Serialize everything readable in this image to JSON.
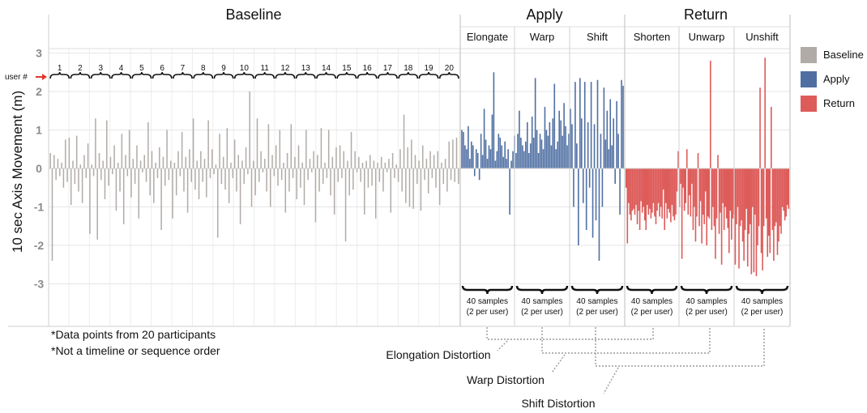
{
  "chart_data": {
    "type": "bar",
    "ylabel": "10 sec Axis Movement (m)",
    "ylim": [
      -3.5,
      3
    ],
    "yticks": [
      3,
      2,
      1,
      0,
      -1,
      -2,
      -3
    ],
    "groups": [
      "Baseline",
      "Apply",
      "Return"
    ],
    "subconditions": [
      "Elongate",
      "Warp",
      "Shift",
      "Shorten",
      "Unwarp",
      "Unshift"
    ],
    "user_marker": "user #",
    "users": [
      "1",
      "2",
      "3",
      "4",
      "5",
      "6",
      "7",
      "8",
      "9",
      "10",
      "11",
      "12",
      "13",
      "14",
      "15",
      "16",
      "17",
      "18",
      "19",
      "20"
    ],
    "sample_label_line1": "40 samples",
    "sample_label_line2": "(2 per user)",
    "legend": [
      {
        "name": "Baseline",
        "color": "#b1aba7"
      },
      {
        "name": "Apply",
        "color": "#4f6fa3"
      },
      {
        "name": "Return",
        "color": "#dd5c5a"
      }
    ],
    "notes": [
      "*Data points from 20 participants",
      "*Not a timeline or sequence order"
    ],
    "distortions": [
      "Elongation Distortion",
      "Warp Distortion",
      "Shift Distortion"
    ],
    "series": [
      {
        "name": "Baseline",
        "values": [
          0.4,
          -2.4,
          0.35,
          -0.3,
          0.25,
          -0.2,
          0.15,
          -0.5,
          0.75,
          -0.35,
          0.8,
          -0.95,
          0.2,
          -0.4,
          0.85,
          -0.6,
          0.1,
          -0.9,
          0.35,
          -0.25,
          0.65,
          -1.7,
          0.1,
          -0.2,
          1.3,
          -1.85,
          0.4,
          -0.3,
          0.2,
          -0.8,
          1.25,
          -0.45,
          0.3,
          -0.15,
          0.6,
          -1.1,
          0.15,
          -0.6,
          0.9,
          -1.45,
          0.35,
          -0.2,
          1.0,
          -0.75,
          0.25,
          -0.4,
          0.6,
          -1.3,
          0.2,
          -0.1,
          0.35,
          -0.35,
          1.2,
          -0.7,
          0.45,
          -0.9,
          0.15,
          -0.25,
          0.55,
          -1.6,
          0.3,
          -0.45,
          1.0,
          -0.3,
          0.2,
          -1.3,
          0.15,
          -0.7,
          0.45,
          -0.2,
          0.95,
          -0.6,
          0.3,
          -1.15,
          0.5,
          -0.35,
          1.3,
          -0.55,
          0.2,
          -0.8,
          0.45,
          -0.35,
          0.25,
          -0.75,
          1.25,
          -0.25,
          0.5,
          -0.15,
          0.1,
          -1.8,
          0.9,
          -0.4,
          0.3,
          -0.55,
          1.05,
          -0.9,
          0.15,
          -0.25,
          0.75,
          -0.6,
          0.35,
          -1.45,
          0.2,
          -0.4,
          0.55,
          -0.15,
          2.0,
          -1.0,
          0.2,
          -0.7,
          1.3,
          -0.35,
          0.45,
          -0.1,
          0.25,
          -0.6,
          1.15,
          -1.0,
          0.35,
          -0.2,
          0.6,
          -0.45,
          1.0,
          -0.3,
          0.15,
          -1.15,
          0.4,
          -0.6,
          1.15,
          -0.25,
          0.3,
          -0.8,
          0.6,
          -0.5,
          0.15,
          -0.95,
          1.0,
          -0.3,
          0.25,
          -0.1,
          0.45,
          -1.4,
          0.35,
          -0.6,
          1.05,
          -0.4,
          0.15,
          -0.25,
          1.0,
          -0.7,
          0.3,
          -1.2,
          0.55,
          -0.35,
          0.6,
          -0.25,
          0.45,
          -1.9,
          0.2,
          -0.7,
          0.95,
          -0.55,
          0.45,
          -0.1,
          0.3,
          -0.35,
          0.15,
          -1.2,
          0.2,
          -0.5,
          0.35,
          -0.45,
          0.2,
          -1.3,
          0.15,
          -0.35,
          0.3,
          -0.6,
          0.15,
          -0.1,
          0.25,
          -1.15,
          0.4,
          -0.25,
          0.1,
          -0.35,
          0.5,
          -0.6,
          1.4,
          -0.9,
          0.55,
          -1.0,
          0.75,
          -1.05,
          0.35,
          -0.4,
          0.2,
          -1.1,
          0.6,
          -0.3,
          0.25,
          -0.65,
          0.45,
          -0.25,
          0.35,
          -0.5,
          0.45,
          -0.95,
          0.15,
          -0.4,
          0.25,
          -0.6,
          0.7,
          -0.3,
          0.75,
          -0.35,
          0.8,
          -0.4
        ]
      },
      {
        "name": "Apply",
        "values": [
          1.0,
          0.95,
          0.6,
          0.5,
          1.1,
          0.25,
          0.7,
          0.6,
          -0.2,
          0.5,
          0.4,
          -0.3,
          0.9,
          0.35,
          1.55,
          0.75,
          0.25,
          0.6,
          0.5,
          1.4,
          2.5,
          0.2,
          0.45,
          0.9,
          0.8,
          0.6,
          0.3,
          0.7,
          0.25,
          0.5,
          -1.2,
          0.2,
          0.45,
          0.85,
          0.4,
          0.9,
          1.5,
          0.8,
          0.6,
          0.45,
          0.7,
          1.2,
          0.4,
          0.65,
          1.35,
          0.8,
          2.35,
          1.0,
          0.4,
          0.9,
          0.75,
          0.5,
          1.6,
          1.0,
          0.85,
          1.2,
          0.6,
          1.3,
          2.2,
          0.5,
          0.7,
          1.5,
          1.25,
          0.85,
          1.7,
          1.1,
          0.6,
          0.9,
          1.55,
          1.15,
          -1.0,
          2.25,
          0.65,
          -2.0,
          2.35,
          1.3,
          -0.9,
          2.25,
          -1.6,
          1.2,
          -0.5,
          2.25,
          -1.8,
          1.15,
          -1.35,
          2.3,
          -2.4,
          0.9,
          -1.0,
          2.1,
          0.75,
          1.5,
          0.5,
          1.8,
          0.6,
          1.3,
          -0.4,
          1.75,
          0.9,
          -1.2,
          2.3,
          2.15
        ]
      },
      {
        "name": "Return",
        "values": [
          -0.5,
          -1.95,
          -0.9,
          -1.2,
          -1.35,
          -1.1,
          -1.05,
          -1.2,
          -0.95,
          -1.45,
          -1.1,
          -1.6,
          -0.85,
          -1.15,
          -1.0,
          -1.35,
          -1.6,
          -0.95,
          -1.2,
          -1.05,
          -1.3,
          -1.15,
          -0.9,
          -1.25,
          -1.45,
          -1.1,
          -0.9,
          -1.25,
          -1.0,
          -1.3,
          -0.55,
          -1.6,
          -0.9,
          -1.3,
          -1.05,
          -1.15,
          -1.4,
          -0.95,
          -1.25,
          -1.35,
          -1.2,
          -0.6,
          0.45,
          -1.0,
          -0.4,
          -2.35,
          -0.5,
          -1.1,
          -0.9,
          0.5,
          -1.2,
          -0.7,
          -1.25,
          -0.4,
          -1.6,
          -1.0,
          -1.9,
          -1.25,
          0.4,
          -1.5,
          -0.85,
          -1.95,
          -1.2,
          -1.45,
          -0.6,
          -2.0,
          -1.25,
          -1.3,
          2.8,
          -1.6,
          -1.0,
          -1.5,
          -2.35,
          -1.3,
          0.35,
          -1.7,
          -1.15,
          -2.5,
          -0.9,
          -1.6,
          -1.0,
          -1.3,
          -1.55,
          -2.2,
          -1.1,
          -1.85,
          -1.3,
          -1.2,
          -2.5,
          -1.45,
          -1.0,
          -2.6,
          -1.5,
          -1.35,
          -1.9,
          -2.4,
          -1.6,
          -1.05,
          -2.55,
          -1.7,
          -1.45,
          -2.75,
          -1.0,
          -2.7,
          -1.2,
          -2.8,
          -2.0,
          -1.5,
          2.1,
          -2.2,
          -2.65,
          -1.5,
          2.88,
          -1.3,
          -2.3,
          -1.75,
          -2.2,
          1.6,
          -1.6,
          -2.4,
          -1.5,
          -1.4,
          -2.25,
          -1.9,
          -1.5,
          -1.7,
          -1.0,
          -1.1,
          -1.35,
          -1.25,
          -0.95,
          -1.05
        ]
      }
    ]
  }
}
